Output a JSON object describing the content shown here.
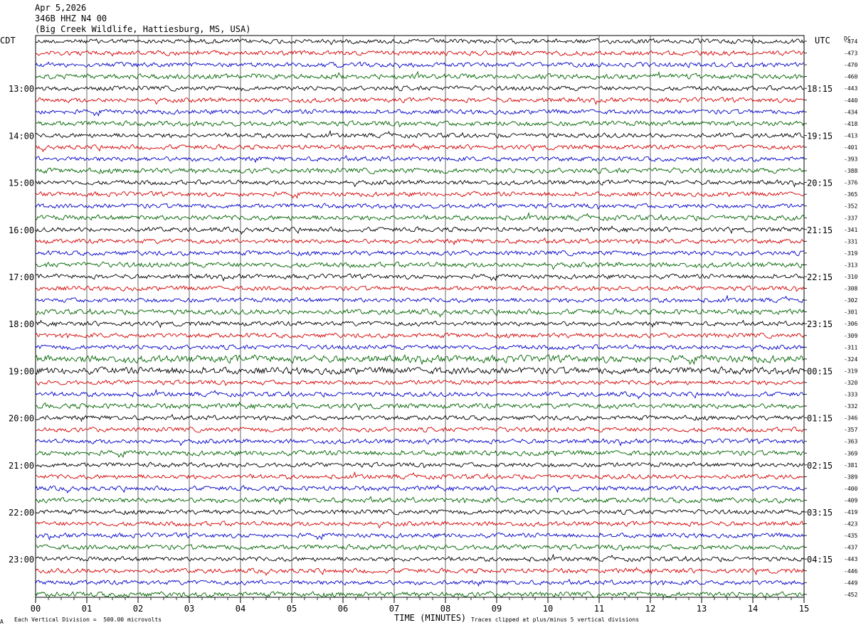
{
  "header": {
    "date": "Apr 5,2026",
    "station": "346B HHZ N4 00",
    "location": "(Big Creek Wildlife, Hattiesburg, MS, USA)"
  },
  "left_zone_label": "CDT",
  "right_zone_label": "UTC",
  "dc_label": "DC",
  "footer": {
    "scale_text": "Each Vertical Division =  500.00 microvolts",
    "xlabel": "TIME (MINUTES)",
    "clip_text": "Traces clipped at plus/minus 5 vertical divisions",
    "corner_mark": "A"
  },
  "colors": {
    "trace_cycle": [
      "#000000",
      "#d40000",
      "#0000c8",
      "#006400"
    ],
    "grid": "#000000"
  },
  "chart_data": {
    "type": "line",
    "title": "Apr 5,2026  346B HHZ N4 00  (Big Creek Wildlife, Hattiesburg, MS, USA)",
    "xlabel": "TIME (MINUTES)",
    "xlim": [
      0,
      15
    ],
    "x_ticks": [
      "00",
      "01",
      "02",
      "03",
      "04",
      "05",
      "06",
      "07",
      "08",
      "09",
      "10",
      "11",
      "12",
      "13",
      "14",
      "15"
    ],
    "left_time_labels": [
      "13:00",
      "14:00",
      "15:00",
      "16:00",
      "17:00",
      "18:00",
      "19:00",
      "20:00",
      "21:00",
      "22:00",
      "23:00"
    ],
    "right_time_labels": [
      "18:15",
      "19:15",
      "20:15",
      "21:15",
      "22:15",
      "23:15",
      "00:15",
      "01:15",
      "02:15",
      "03:15",
      "04:15"
    ],
    "rows_per_hour": 4,
    "first_hour_offset_rows": 4,
    "dc_offsets": [
      -474,
      -473,
      -470,
      -460,
      -443,
      -440,
      -434,
      -418,
      -413,
      -401,
      -393,
      -388,
      -376,
      -365,
      -352,
      -337,
      -341,
      -331,
      -319,
      -313,
      -310,
      -308,
      -302,
      -301,
      -306,
      -309,
      -311,
      -324,
      -319,
      -320,
      -333,
      -332,
      -346,
      -357,
      -363,
      -369,
      -381,
      -389,
      -400,
      -409,
      -419,
      -423,
      -435,
      -437,
      -443,
      -446,
      -449,
      -452
    ],
    "units": "microvolts",
    "vertical_division": 500.0
  }
}
